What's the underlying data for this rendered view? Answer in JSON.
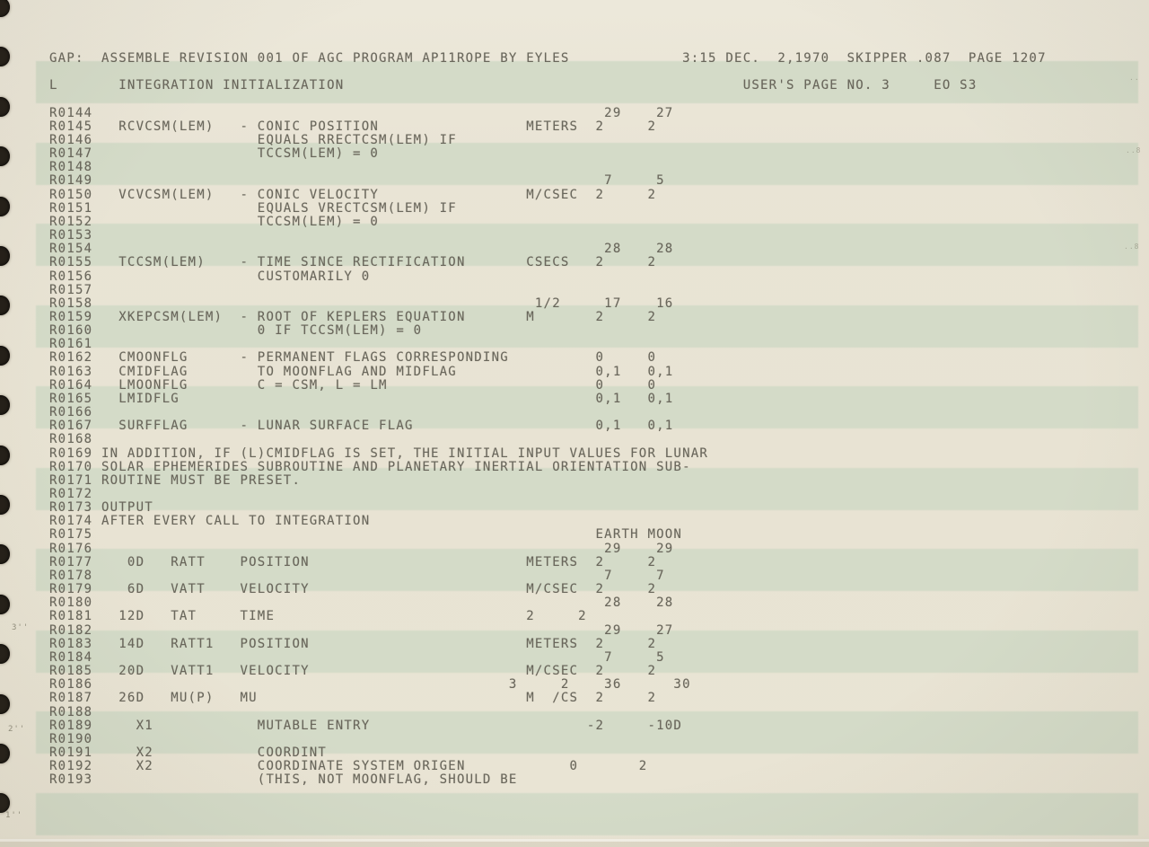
{
  "document": {
    "kind": "scanned greenbar printout of AGC assembly listing",
    "header": {
      "assembler_line": "GAP:  ASSEMBLE REVISION 001 OF AGC PROGRAM AP11ROPE BY EYLES",
      "timestamp": "3:15 DEC.  2,1970",
      "build": "SKIPPER .087",
      "page": "PAGE 1207",
      "log_section": "L",
      "section_title": "INTEGRATION INITIALIZATION",
      "users_page_label": "USER'S PAGE NO.",
      "users_page_no": "3",
      "revision_code": "EO S3"
    },
    "lines": [
      "GAP:  ASSEMBLE REVISION 001 OF AGC PROGRAM AP11ROPE BY EYLES             3:15 DEC.  2,1970  SKIPPER .087  PAGE 1207",
      "",
      "L       INTEGRATION INITIALIZATION                                              USER'S PAGE NO. 3     EO S3",
      "",
      "R0144                                                           29    27",
      "R0145   RCVCSM(LEM)   - CONIC POSITION                 METERS  2     2",
      "R0146                   EQUALS RRECTCSM(LEM) IF",
      "R0147                   TCCSM(LEM) = 0",
      "R0148",
      "R0149                                                           7     5",
      "R0150   VCVCSM(LEM)   - CONIC VELOCITY                 M/CSEC  2     2",
      "R0151                   EQUALS VRECTCSM(LEM) IF",
      "R0152                   TCCSM(LEM) = 0",
      "R0153",
      "R0154                                                           28    28",
      "R0155   TCCSM(LEM)    - TIME SINCE RECTIFICATION       CSECS   2     2",
      "R0156                   CUSTOMARILY 0",
      "R0157",
      "R0158                                                   1/2     17    16",
      "R0159   XKEPCSM(LEM)  - ROOT OF KEPLERS EQUATION       M       2     2",
      "R0160                   0 IF TCCSM(LEM) = 0",
      "R0161",
      "R0162   CMOONFLG      - PERMANENT FLAGS CORRESPONDING          0     0",
      "R0163   CMIDFLAG        TO MOONFLAG AND MIDFLAG                0,1   0,1",
      "R0164   LMOONFLG        C = CSM, L = LM                        0     0",
      "R0165   LMIDFLG                                                0,1   0,1",
      "R0166",
      "R0167   SURFFLAG      - LUNAR SURFACE FLAG                     0,1   0,1",
      "R0168",
      "R0169 IN ADDITION, IF (L)CMIDFLAG IS SET, THE INITIAL INPUT VALUES FOR LUNAR",
      "R0170 SOLAR EPHEMERIDES SUBROUTINE AND PLANETARY INERTIAL ORIENTATION SUB-",
      "R0171 ROUTINE MUST BE PRESET.",
      "R0172",
      "R0173 OUTPUT",
      "R0174 AFTER EVERY CALL TO INTEGRATION",
      "R0175                                                          EARTH MOON",
      "R0176                                                           29    29",
      "R0177    0D   RATT    POSITION                         METERS  2     2",
      "R0178                                                           7     7",
      "R0179    6D   VATT    VELOCITY                         M/CSEC  2     2",
      "R0180                                                           28    28",
      "R0181   12D   TAT     TIME                             2     2",
      "R0182                                                           29    27",
      "R0183   14D   RATT1   POSITION                         METERS  2     2",
      "R0184                                                           7     5",
      "R0185   20D   VATT1   VELOCITY                         M/CSEC  2     2",
      "R0186                                                3     2    36      30",
      "R0187   26D   MU(P)   MU                               M  /CS  2     2",
      "R0188",
      "R0189     X1            MUTABLE ENTRY                         -2     -10D",
      "R0190",
      "R0191     X2            COORDINT",
      "R0192     X2            COORDINATE SYSTEM ORIGEN            0       2",
      "R0193                   (THIS, NOT MOONFLAG, SHOULD BE"
    ]
  },
  "margin": {
    "ruler_marks": {
      "three": "3''",
      "two": "2''",
      "one": "1''"
    },
    "edge_marks": [
      "..",
      "..8",
      "..8"
    ]
  },
  "colors": {
    "paper": "#e9e4d5",
    "stripe": "#d4dbc8",
    "ink": "#615e53",
    "hole": "#241f18"
  }
}
